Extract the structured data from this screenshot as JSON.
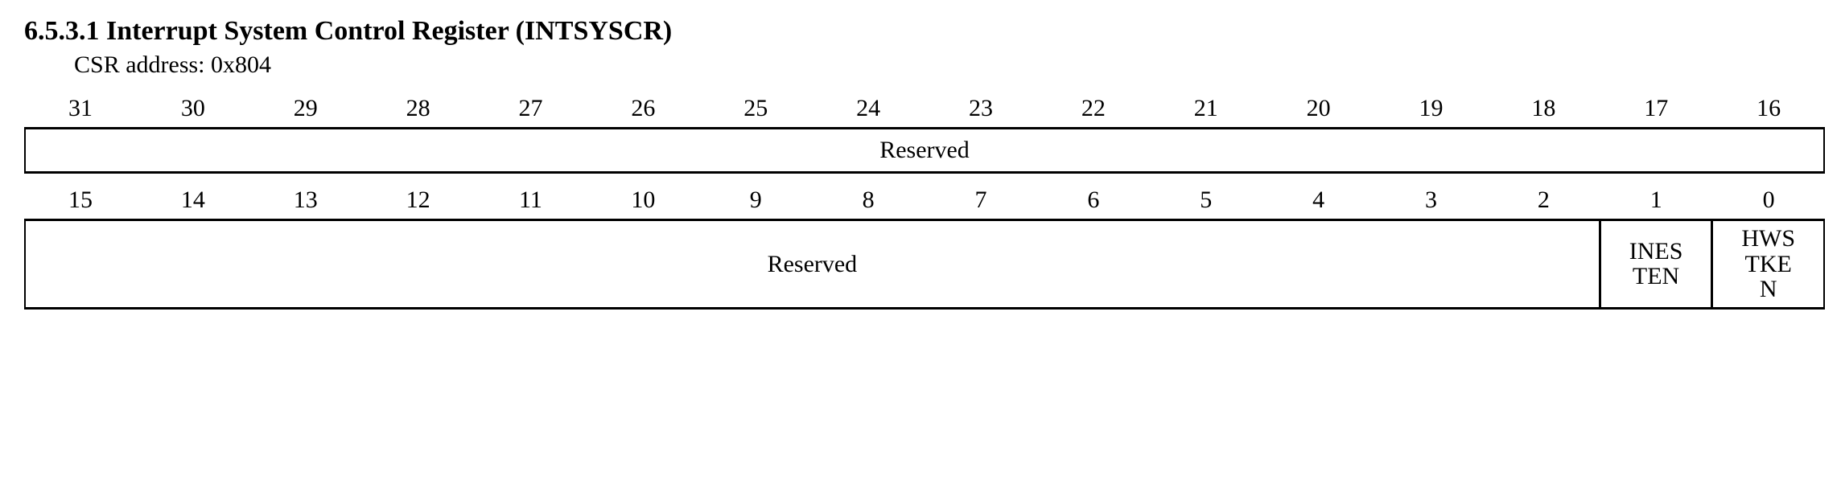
{
  "heading": "6.5.3.1 Interrupt System Control Register (INTSYSCR)",
  "subheading": "CSR address: 0x804",
  "bits_high": [
    "31",
    "30",
    "29",
    "28",
    "27",
    "26",
    "25",
    "24",
    "23",
    "22",
    "21",
    "20",
    "19",
    "18",
    "17",
    "16"
  ],
  "bits_low": [
    "15",
    "14",
    "13",
    "12",
    "11",
    "10",
    "9",
    "8",
    "7",
    "6",
    "5",
    "4",
    "3",
    "2",
    "1",
    "0"
  ],
  "row1": {
    "reserved": "Reserved"
  },
  "row2": {
    "reserved": "Reserved",
    "bit1": "INES\nTEN",
    "bit0": "HWS\nTKE\nN"
  },
  "colors": {
    "bg": "#ffffff",
    "fg": "#000000",
    "border": "#000000"
  }
}
